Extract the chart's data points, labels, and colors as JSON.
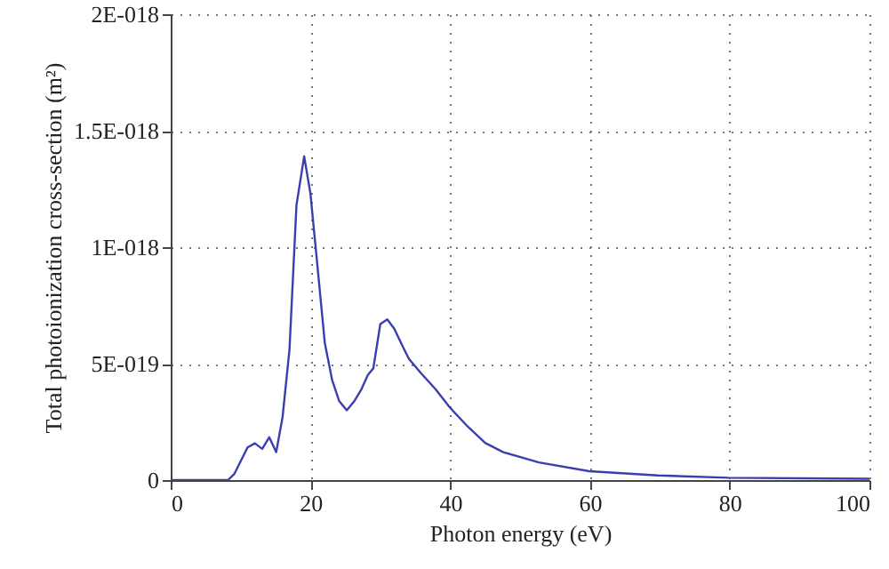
{
  "chart_data": {
    "type": "line",
    "xlabel": "Photon energy (eV)",
    "ylabel": "Total photoionization cross-section (m²)",
    "x": [
      0,
      8.2,
      9.1,
      11.0,
      12.05,
      13.1,
      14.1,
      15.1,
      16.0,
      17.0,
      18.0,
      19.1,
      20.0,
      21.0,
      22.05,
      23.1,
      24.1,
      25.2,
      26.3,
      27.3,
      28.2,
      29.0,
      30.0,
      31.0,
      32.0,
      33.1,
      34.1,
      35.8,
      37.9,
      40.0,
      42.5,
      45.0,
      47.6,
      52.7,
      59.9,
      69.7,
      79.8,
      100
    ],
    "series": [
      {
        "color": "#3a3fb0",
        "values": [
          0,
          0,
          2.6e-20,
          1.4e-19,
          1.58e-19,
          1.34e-19,
          1.84e-19,
          1.2e-19,
          2.68e-19,
          5.6e-19,
          1.18e-18,
          1.39e-18,
          1.23e-18,
          9.2e-19,
          5.9e-19,
          4.3e-19,
          3.4e-19,
          3e-19,
          3.4e-19,
          3.9e-19,
          4.5e-19,
          4.8e-19,
          6.7e-19,
          6.9e-19,
          6.5e-19,
          5.8e-19,
          5.2e-19,
          4.6e-19,
          3.9e-19,
          3.1e-19,
          2.3e-19,
          1.6e-19,
          1.2e-19,
          7.6e-20,
          3.8e-20,
          2e-20,
          1e-20,
          6e-21
        ]
      }
    ],
    "xlim": [
      0,
      100
    ],
    "xticks": [
      0,
      20,
      40,
      60,
      80,
      100
    ],
    "ylim": [
      0,
      2e-18
    ],
    "yticks": [
      0,
      {
        "value": 5e-19,
        "label": "5E-019"
      },
      {
        "value": 1e-18,
        "label": "1E-018"
      },
      {
        "value": 1.5e-18,
        "label": "1.5E-018"
      },
      {
        "value": 2e-18,
        "label": "2E-018"
      }
    ],
    "grid": true,
    "marker": "none",
    "line_style": "solid"
  }
}
